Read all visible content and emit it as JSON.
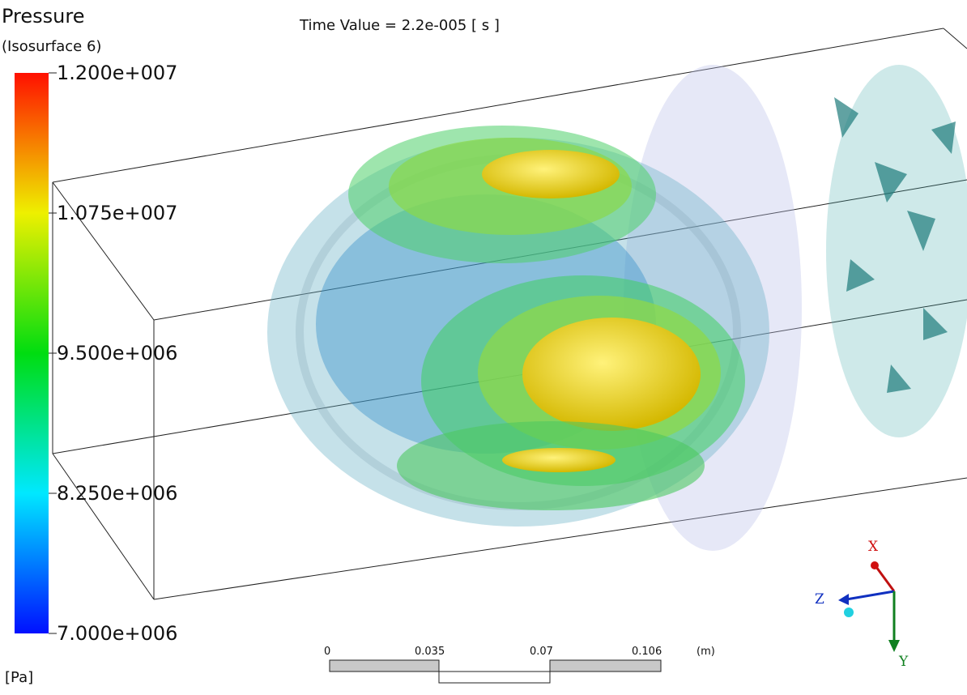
{
  "legend": {
    "title": "Pressure",
    "subtitle": "(Isosurface 6)",
    "ticks": [
      "1.200e+007",
      "1.075e+007",
      "9.500e+006",
      "8.250e+006",
      "7.000e+006"
    ],
    "unit": "[Pa]"
  },
  "time_label": "Time Value = 2.2e-005 [ s ]",
  "scale_bar": {
    "labels": [
      "0",
      "0.035",
      "0.07",
      "0.106"
    ],
    "unit": "(m)"
  },
  "triad": {
    "x": "X",
    "y": "Y",
    "z": "Z"
  }
}
